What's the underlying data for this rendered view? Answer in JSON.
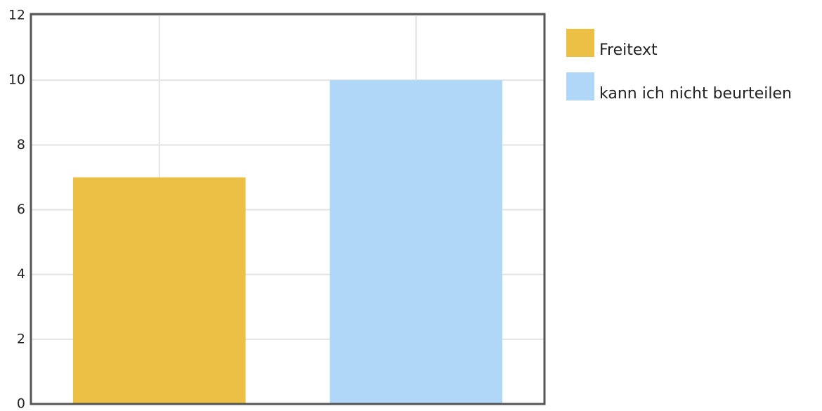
{
  "chart_data": {
    "type": "bar",
    "categories": [
      null,
      null
    ],
    "series": [
      {
        "name": "Freitext",
        "color": "#ecc044",
        "values": [
          7,
          null
        ]
      },
      {
        "name": "kann ich nicht beurteilen",
        "color": "#b0d7f7",
        "values": [
          null,
          10
        ]
      }
    ],
    "ylim": [
      0,
      12
    ],
    "yticks": [
      0,
      2,
      4,
      6,
      8,
      10,
      12
    ],
    "grid": true,
    "legend": "right"
  }
}
